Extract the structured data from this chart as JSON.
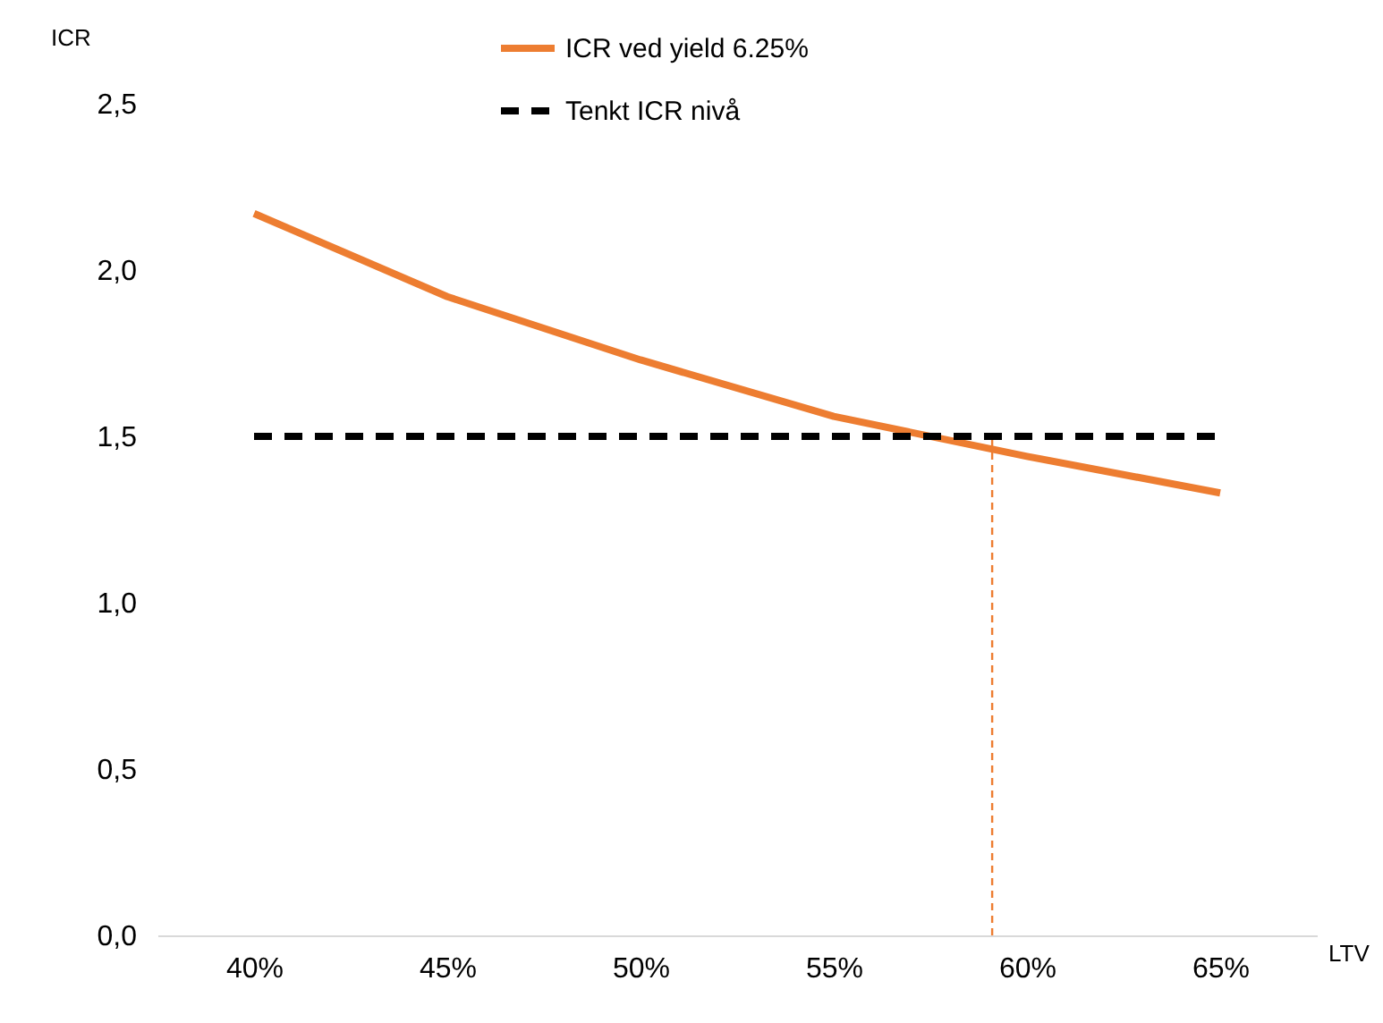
{
  "chart_data": {
    "type": "line",
    "xlabel": "LTV",
    "ylabel": "ICR",
    "legend": "top",
    "x": [
      40,
      45,
      50,
      55,
      60,
      65
    ],
    "xlim": [
      37.5,
      67.5
    ],
    "xticks": [
      {
        "value": 40,
        "label": "40%"
      },
      {
        "value": 45,
        "label": "45%"
      },
      {
        "value": 50,
        "label": "50%"
      },
      {
        "value": 55,
        "label": "55%"
      },
      {
        "value": 60,
        "label": "60%"
      },
      {
        "value": 65,
        "label": "65%"
      }
    ],
    "ylim": [
      0,
      2.5
    ],
    "yticks": [
      {
        "value": 0,
        "label": "0,0"
      },
      {
        "value": 0.5,
        "label": "0,5"
      },
      {
        "value": 1,
        "label": "1,0"
      },
      {
        "value": 1.5,
        "label": "1,5"
      },
      {
        "value": 2,
        "label": "2,0"
      },
      {
        "value": 2.5,
        "label": "2,5"
      }
    ],
    "series": [
      {
        "name": "ICR ved yield 6.25%",
        "color": "#ed7d31",
        "line_style": "solid",
        "values": [
          2.17,
          1.92,
          1.73,
          1.56,
          1.44,
          1.33
        ]
      },
      {
        "name": "Tenkt ICR nivå",
        "color": "#000000",
        "line_style": "dashed",
        "values": [
          1.5,
          1.5,
          1.5,
          1.5,
          1.5,
          1.5
        ]
      },
      {
        "color": "#ed7d31",
        "line_style": "dashed",
        "x": [
          59.1,
          59.1
        ],
        "values": [
          0,
          1.5
        ]
      }
    ]
  }
}
